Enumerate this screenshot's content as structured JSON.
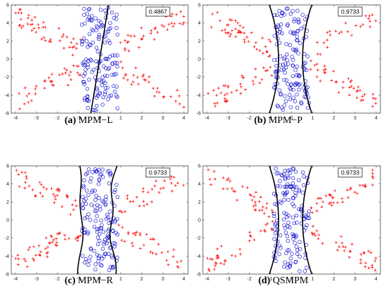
{
  "chart_data": [
    {
      "type": "scatter",
      "caption_letter": "(a)",
      "caption_text": "MPM−L",
      "accuracy": "0.4867",
      "xlim": [
        -4.2,
        4.2
      ],
      "ylim": [
        -6,
        6
      ],
      "x_ticks": [
        "-4",
        "-3",
        "-2",
        "-1",
        "0",
        "1",
        "2",
        "3",
        "4"
      ],
      "y_ticks": [
        "-6",
        "-4",
        "-2",
        "0",
        "2",
        "4",
        "6"
      ],
      "boundary": "linear",
      "series": [
        {
          "marker": "plus",
          "color": "#ff0000"
        },
        {
          "marker": "circle",
          "color": "#0000cc"
        }
      ]
    },
    {
      "type": "scatter",
      "caption_letter": "(b)",
      "caption_text": "MPM−P",
      "accuracy": "0.9733",
      "xlim": [
        -4.2,
        4.2
      ],
      "ylim": [
        -6,
        6
      ],
      "x_ticks": [
        "-4",
        "-3",
        "-2",
        "-1",
        "0",
        "1",
        "2",
        "3",
        "4"
      ],
      "y_ticks": [
        "-6",
        "-4",
        "-2",
        "0",
        "2",
        "4",
        "6"
      ],
      "boundary": "hourglass",
      "series": [
        {
          "marker": "plus",
          "color": "#ff0000"
        },
        {
          "marker": "circle",
          "color": "#0000cc"
        }
      ]
    },
    {
      "type": "scatter",
      "caption_letter": "(c)",
      "caption_text": "MPM−R",
      "accuracy": "0.9733",
      "xlim": [
        -4.2,
        4.2
      ],
      "ylim": [
        -6,
        6
      ],
      "x_ticks": [
        "-4",
        "-3",
        "-2",
        "-1",
        "0",
        "1",
        "2",
        "3",
        "4"
      ],
      "y_ticks": [
        "-6",
        "-4",
        "-2",
        "0",
        "2",
        "4",
        "6"
      ],
      "boundary": "wavy",
      "series": [
        {
          "marker": "plus",
          "color": "#ff0000"
        },
        {
          "marker": "circle",
          "color": "#0000cc"
        }
      ]
    },
    {
      "type": "scatter",
      "caption_letter": "(d)",
      "caption_text": "QSMPM",
      "accuracy": "0.9733",
      "xlim": [
        -4.2,
        4.2
      ],
      "ylim": [
        -6,
        6
      ],
      "x_ticks": [
        "-4",
        "-3",
        "-2",
        "-1",
        "0",
        "1",
        "2",
        "3",
        "4"
      ],
      "y_ticks": [
        "-6",
        "-4",
        "-2",
        "0",
        "2",
        "4",
        "6"
      ],
      "boundary": "hourglass",
      "series": [
        {
          "marker": "plus",
          "color": "#ff0000"
        },
        {
          "marker": "circle",
          "color": "#0000cc"
        }
      ]
    }
  ]
}
